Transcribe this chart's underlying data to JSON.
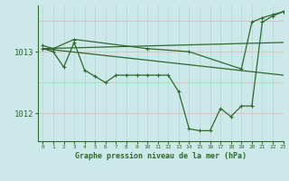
{
  "bg_color": "#cce8e8",
  "line_color": "#2d6a2d",
  "title": "Graphe pression niveau de la mer (hPa)",
  "ylabel_ticks": [
    1012,
    1013
  ],
  "x_range": [
    -0.5,
    23
  ],
  "y_range": [
    1011.55,
    1013.75
  ],
  "line1_x": [
    0,
    1,
    2,
    3,
    4,
    5,
    6,
    7,
    8,
    9,
    10,
    11,
    12,
    13,
    14,
    15,
    16,
    17,
    18,
    19,
    20,
    21,
    22,
    23
  ],
  "line1_y": [
    1013.05,
    1013.0,
    1012.75,
    1013.15,
    1012.7,
    1012.6,
    1012.5,
    1012.62,
    1012.62,
    1012.62,
    1012.62,
    1012.62,
    1012.62,
    1012.35,
    1011.75,
    1011.72,
    1011.72,
    1012.08,
    1011.95,
    1012.12,
    1012.12,
    1013.48,
    1013.58,
    1013.65
  ],
  "line2_x": [
    0,
    1,
    3,
    10,
    14,
    19,
    20,
    21,
    22,
    23
  ],
  "line2_y": [
    1013.1,
    1013.05,
    1013.2,
    1013.05,
    1013.0,
    1012.72,
    1013.48,
    1013.55,
    1013.6,
    1013.65
  ],
  "line3_x": [
    0,
    23
  ],
  "line3_y": [
    1013.05,
    1013.15
  ],
  "line4_x": [
    0,
    23
  ],
  "line4_y": [
    1013.05,
    1012.62
  ]
}
